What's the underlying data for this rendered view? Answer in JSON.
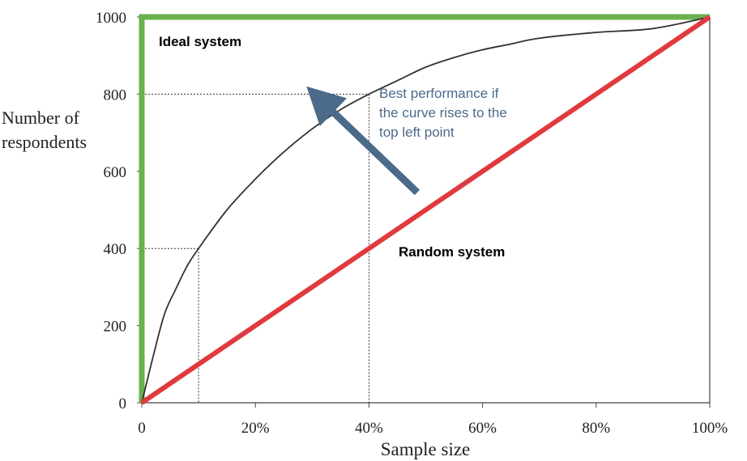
{
  "chart_data": {
    "type": "line",
    "title": "",
    "xlabel": "Sample size",
    "ylabel_lines": [
      "Number of",
      "respondents"
    ],
    "xlim": [
      0,
      100
    ],
    "ylim": [
      0,
      1000
    ],
    "x_ticks": [
      0,
      20,
      40,
      60,
      80,
      100
    ],
    "x_tick_labels": [
      "0",
      "20%",
      "40%",
      "60%",
      "80%",
      "100%"
    ],
    "y_ticks": [
      0,
      200,
      400,
      600,
      800,
      1000
    ],
    "y_tick_labels": [
      "0",
      "200",
      "400",
      "600",
      "800",
      "1000"
    ],
    "grid": false,
    "series": [
      {
        "name": "Ideal system",
        "color": "#6ab04c",
        "points": [
          [
            0,
            0
          ],
          [
            0,
            1000
          ],
          [
            100,
            1000
          ]
        ]
      },
      {
        "name": "Random system",
        "color": "#e03a3e",
        "points": [
          [
            0,
            0
          ],
          [
            100,
            1000
          ]
        ]
      },
      {
        "name": "",
        "color": "#333333",
        "points": [
          [
            0,
            0
          ],
          [
            2,
            120
          ],
          [
            4,
            230
          ],
          [
            6,
            295
          ],
          [
            8,
            355
          ],
          [
            10,
            400
          ],
          [
            15,
            500
          ],
          [
            20,
            580
          ],
          [
            25,
            650
          ],
          [
            30,
            710
          ],
          [
            35,
            760
          ],
          [
            40,
            800
          ],
          [
            45,
            835
          ],
          [
            50,
            870
          ],
          [
            55,
            895
          ],
          [
            60,
            915
          ],
          [
            65,
            930
          ],
          [
            70,
            945
          ],
          [
            80,
            960
          ],
          [
            90,
            970
          ],
          [
            100,
            1000
          ]
        ]
      }
    ],
    "reference_points": [
      {
        "x": 10,
        "y": 400
      },
      {
        "x": 40,
        "y": 800
      }
    ],
    "annotations": {
      "performance_text": [
        "Best performance if",
        "the curve rises to the",
        "top left point"
      ],
      "arrow_color": "#4c6a8a",
      "arrow_from": [
        48.5,
        545
      ],
      "arrow_to": [
        29,
        820
      ]
    }
  }
}
